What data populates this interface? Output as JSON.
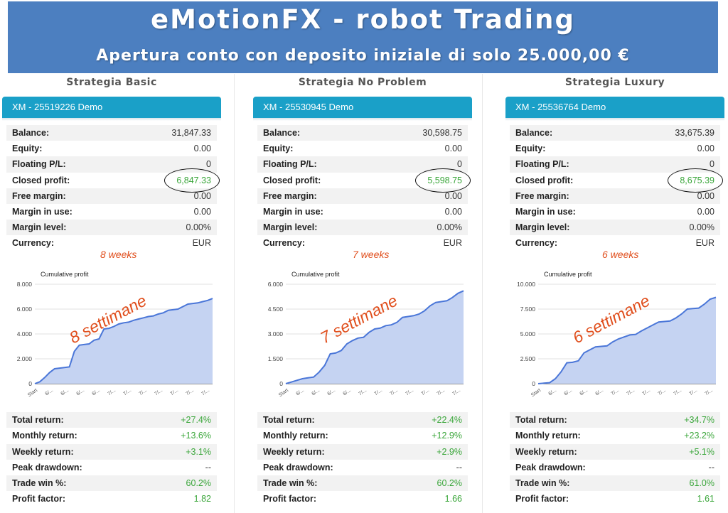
{
  "banner": {
    "title": "eMotionFX - robot Trading",
    "subtitle": "Apertura conto con deposito iniziale di solo 25.000,00 €"
  },
  "labels": {
    "balance": "Balance:",
    "equity": "Equity:",
    "floating": "Floating P/L:",
    "closed_profit": "Closed profit:",
    "free_margin": "Free margin:",
    "margin_in_use": "Margin in use:",
    "margin_level": "Margin level:",
    "currency": "Currency:",
    "total_return": "Total return:",
    "monthly_return": "Monthly return:",
    "weekly_return": "Weekly return:",
    "peak_drawdown": "Peak drawdown:",
    "trade_win": "Trade win %:",
    "profit_factor": "Profit factor:"
  },
  "colors": {
    "banner_bg": "#4c7fc0",
    "account_header": "#1aa0c8",
    "positive": "#3aa63a",
    "line": "#4a76d8",
    "area": "#c5d3f2",
    "annotation": "#e04e1c"
  },
  "strategies": [
    {
      "name": "Strategia Basic",
      "account": "XM - 25519226 Demo",
      "stats": {
        "balance": "31,847.33",
        "equity": "0.00",
        "floating": "0",
        "closed_profit": "6,847.33",
        "free_margin": "0.00",
        "margin_in_use": "0.00",
        "margin_level": "0.00%",
        "currency": "EUR"
      },
      "weeks_label": "8 weeks",
      "chart_annotation": "8 settimane",
      "performance": {
        "total_return": "+27.4%",
        "monthly_return": "+13.6%",
        "weekly_return": "+3.1%",
        "peak_drawdown": "--",
        "trade_win": "60.2%",
        "profit_factor": "1.82"
      }
    },
    {
      "name": "Strategia No Problem",
      "account": "XM - 25530945 Demo",
      "stats": {
        "balance": "30,598.75",
        "equity": "0.00",
        "floating": "0",
        "closed_profit": "5,598.75",
        "free_margin": "0.00",
        "margin_in_use": "0.00",
        "margin_level": "0.00%",
        "currency": "EUR"
      },
      "weeks_label": "7 weeks",
      "chart_annotation": "7 settimane",
      "performance": {
        "total_return": "+22.4%",
        "monthly_return": "+12.9%",
        "weekly_return": "+2.9%",
        "peak_drawdown": "--",
        "trade_win": "60.2%",
        "profit_factor": "1.66"
      }
    },
    {
      "name": "Strategia Luxury",
      "account": "XM - 25536764 Demo",
      "stats": {
        "balance": "33,675.39",
        "equity": "0.00",
        "floating": "0",
        "closed_profit": "8,675.39",
        "free_margin": "0.00",
        "margin_in_use": "0.00",
        "margin_level": "0.00%",
        "currency": "EUR"
      },
      "weeks_label": "6 weeks",
      "chart_annotation": "6 settimane",
      "performance": {
        "total_return": "+34.7%",
        "monthly_return": "+23.2%",
        "weekly_return": "+5.1%",
        "peak_drawdown": "--",
        "trade_win": "61.0%",
        "profit_factor": "1.61"
      }
    }
  ],
  "chart_data": [
    {
      "type": "area",
      "title": "Cumulative profit",
      "ylim": [
        0,
        8000
      ],
      "yticks": [
        "0",
        "2.000",
        "4.000",
        "6.000",
        "8.000"
      ],
      "ytick_values": [
        0,
        2000,
        4000,
        6000,
        8000
      ],
      "xticks": [
        "Start",
        "6/...",
        "6/...",
        "6/...",
        "6/...",
        "7/...",
        "7/...",
        "7/...",
        "7/...",
        "7/...",
        "7/...",
        "7/..."
      ],
      "grid": true,
      "series": [
        {
          "values": [
            0,
            150,
            500,
            900,
            1200,
            1250,
            1300,
            1350,
            2600,
            3100,
            3150,
            3200,
            3500,
            3600,
            4400,
            4450,
            4600,
            4800,
            4900,
            4950,
            5100,
            5200,
            5300,
            5400,
            5450,
            5600,
            5700,
            5900,
            5950,
            6000,
            6200,
            6400,
            6450,
            6500,
            6600,
            6700,
            6850
          ]
        }
      ]
    },
    {
      "type": "area",
      "title": "Cumulative profit",
      "ylim": [
        0,
        6000
      ],
      "yticks": [
        "0",
        "1.500",
        "3.000",
        "4.500",
        "6.000"
      ],
      "ytick_values": [
        0,
        1500,
        3000,
        4500,
        6000
      ],
      "xticks": [
        "Start",
        "6/...",
        "6/...",
        "6/...",
        "6/...",
        "7/...",
        "7/...",
        "7/...",
        "7/...",
        "7/...",
        "7/...",
        "7/..."
      ],
      "grid": true,
      "series": [
        {
          "values": [
            0,
            100,
            200,
            300,
            350,
            400,
            700,
            1100,
            1800,
            1850,
            2000,
            2400,
            2600,
            2750,
            2800,
            3100,
            3300,
            3350,
            3500,
            3550,
            3700,
            4000,
            4050,
            4100,
            4200,
            4400,
            4700,
            4900,
            4950,
            5000,
            5200,
            5450,
            5600
          ]
        }
      ]
    },
    {
      "type": "area",
      "title": "Cumulative profit",
      "ylim": [
        0,
        10000
      ],
      "yticks": [
        "0",
        "2.500",
        "5.000",
        "7.500",
        "10.000"
      ],
      "ytick_values": [
        0,
        2500,
        5000,
        7500,
        10000
      ],
      "xticks": [
        "Start",
        "6/...",
        "6/...",
        "6/...",
        "6/...",
        "7/...",
        "7/...",
        "7/...",
        "7/...",
        "7/...",
        "7/...",
        "7/..."
      ],
      "grid": true,
      "series": [
        {
          "values": [
            0,
            50,
            100,
            500,
            1200,
            2100,
            2150,
            2300,
            3100,
            3400,
            3700,
            3750,
            3800,
            4200,
            4500,
            4700,
            4900,
            4950,
            5300,
            5600,
            5900,
            6200,
            6250,
            6300,
            6600,
            7000,
            7500,
            7550,
            7600,
            8000,
            8500,
            8675
          ]
        }
      ]
    }
  ]
}
